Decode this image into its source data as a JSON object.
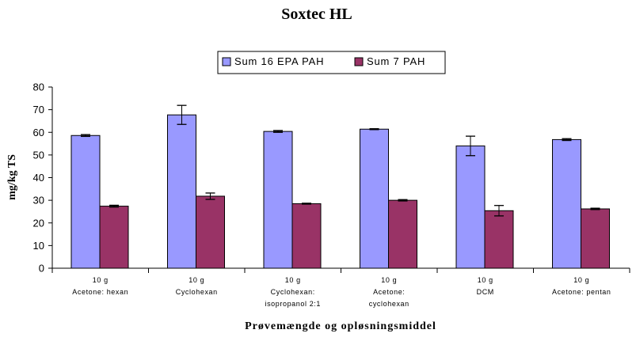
{
  "chart_data": {
    "type": "bar",
    "title": "Soxtec HL",
    "xlabel": "Prøvemængde og opløsningsmiddel",
    "ylabel": "mg/kg TS",
    "ylim": [
      0,
      80
    ],
    "yticks": [
      0,
      10,
      20,
      30,
      40,
      50,
      60,
      70,
      80
    ],
    "grid": false,
    "legend_position": "top",
    "categories": [
      {
        "line1": "10 g",
        "line2": "Acetone: hexan",
        "line3": ""
      },
      {
        "line1": "10 g",
        "line2": "Cyclohexan",
        "line3": ""
      },
      {
        "line1": "10 g",
        "line2": "Cyclohexan:",
        "line3": "isopropanol 2:1"
      },
      {
        "line1": "10 g",
        "line2": "Acetone:",
        "line3": "cyclohexan"
      },
      {
        "line1": "10 g",
        "line2": "DCM",
        "line3": ""
      },
      {
        "line1": "10 g",
        "line2": "Acetone: pentan",
        "line3": ""
      }
    ],
    "series": [
      {
        "name": "Sum 16 EPA PAH",
        "color": "#9999FF",
        "values": [
          58.6,
          67.7,
          60.4,
          61.4,
          54.0,
          56.8
        ],
        "error": [
          0.4,
          4.2,
          0.4,
          0.2,
          4.3,
          0.4
        ]
      },
      {
        "name": "Sum 7 PAH",
        "color": "#993366",
        "values": [
          27.4,
          31.8,
          28.5,
          30.0,
          25.4,
          26.2
        ],
        "error": [
          0.4,
          1.4,
          0.2,
          0.3,
          2.3,
          0.3
        ]
      }
    ]
  }
}
